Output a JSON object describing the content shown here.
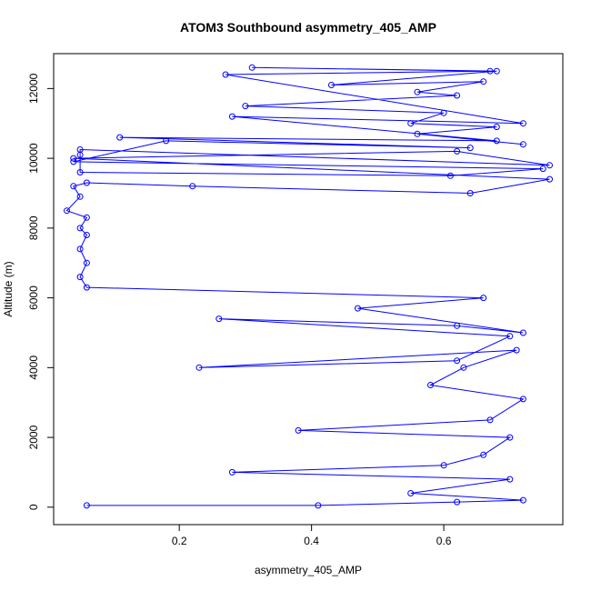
{
  "chart_data": {
    "type": "scatter",
    "title": "ATOM3 Southbound asymmetry_405_AMP",
    "xlabel": "asymmetry_405_AMP",
    "ylabel": "Altitude (m)",
    "xlim": [
      0.01,
      0.78
    ],
    "ylim": [
      -500,
      13000
    ],
    "x_ticks": [
      0.2,
      0.4,
      0.6
    ],
    "x_tick_labels": [
      "0.2",
      "0.4",
      "0.6"
    ],
    "y_ticks": [
      0,
      2000,
      4000,
      6000,
      8000,
      10000,
      12000
    ],
    "y_tick_labels": [
      "0",
      "2000",
      "4000",
      "6000",
      "8000",
      "10000",
      "12000"
    ],
    "grid": false,
    "legend": "none",
    "series": [
      {
        "color": "#0000ff",
        "marker": "open-circle",
        "connected": true,
        "x": [
          0.06,
          0.41,
          0.62,
          0.72,
          0.55,
          0.7,
          0.28,
          0.6,
          0.66,
          0.7,
          0.38,
          0.67,
          0.72,
          0.58,
          0.63,
          0.71,
          0.23,
          0.62,
          0.7,
          0.26,
          0.62,
          0.72,
          0.47,
          0.66,
          0.06,
          0.05,
          0.06,
          0.05,
          0.06,
          0.05,
          0.06,
          0.03,
          0.05,
          0.04,
          0.06,
          0.22,
          0.64,
          0.76,
          0.04,
          0.62,
          0.76,
          0.05,
          0.05,
          0.05,
          0.61,
          0.75,
          0.04,
          0.18,
          0.64,
          0.11,
          0.68,
          0.28,
          0.72,
          0.27,
          0.67,
          0.31,
          0.68,
          0.43,
          0.66,
          0.56,
          0.62,
          0.3,
          0.6,
          0.55,
          0.68,
          0.56,
          0.72
        ],
        "y": [
          50,
          50,
          150,
          200,
          400,
          800,
          1000,
          1200,
          1500,
          2000,
          2200,
          2500,
          3100,
          3500,
          4000,
          4500,
          4000,
          4200,
          4900,
          5400,
          5200,
          5000,
          5700,
          6000,
          6300,
          6600,
          7000,
          7400,
          7800,
          8000,
          8300,
          8500,
          8900,
          9200,
          9300,
          9200,
          9000,
          9400,
          10000,
          10200,
          9800,
          10250,
          10100,
          9600,
          9500,
          9700,
          9900,
          10500,
          10300,
          10600,
          10500,
          11200,
          11000,
          12400,
          12500,
          12600,
          12500,
          12100,
          12200,
          11900,
          11800,
          11500,
          11300,
          11000,
          10900,
          10700,
          10400
        ]
      }
    ]
  }
}
